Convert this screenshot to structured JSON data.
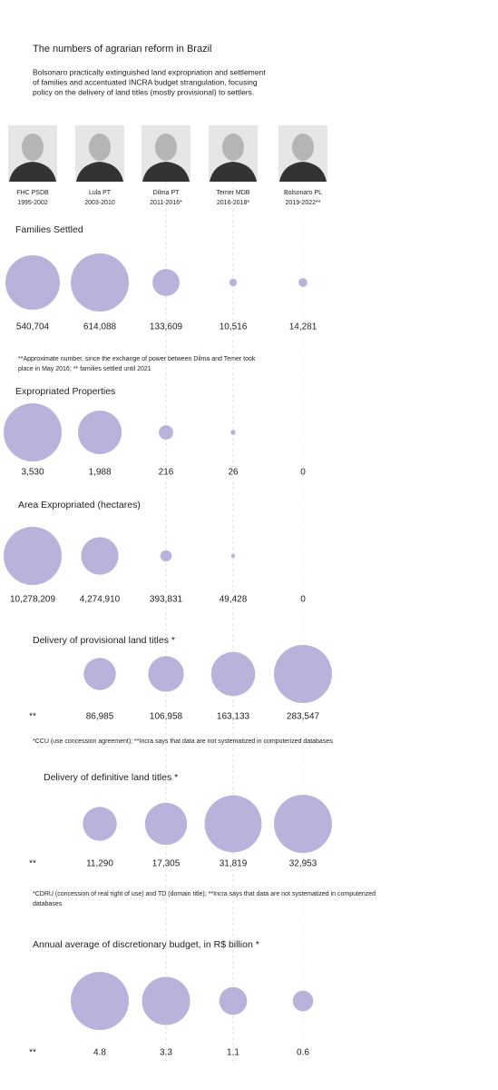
{
  "title": "The numbers of agrarian reform in Brazil",
  "subtitle": [
    "Bolsonaro practically extinguished land expropriation and settlement",
    "of families and accentuated INCRA budget strangulation, focusing",
    "policy on the delivery of land titles (mostly provisional) to settlers."
  ],
  "presidents": [
    {
      "name": "FHC PSDB",
      "years": "1995-2002"
    },
    {
      "name": "Lula  PT",
      "years": "2003-2010"
    },
    {
      "name": "Dilma PT",
      "years": "2011-2016*"
    },
    {
      "name": "Temer MDB",
      "years": "2016-2018*"
    },
    {
      "name": "Bolsonaro PL",
      "years": "2019-2022**"
    }
  ],
  "chart_data": [
    {
      "type": "bubble",
      "title": "Families Settled",
      "color": "#b9b3dc",
      "values": [
        540704,
        614088,
        133609,
        10516,
        14281
      ],
      "value_labels": [
        "540,704",
        "614,088",
        "133,609",
        "10,516",
        "14,281"
      ],
      "note": [
        "**Approximate number, since the exchange of power between Dilma and Temer took",
        "place in May 2016; ** families settled until 2021"
      ]
    },
    {
      "type": "bubble",
      "title": "Expropriated  Properties",
      "color": "#b9b3dc",
      "values": [
        3530,
        1988,
        216,
        26,
        0
      ],
      "value_labels": [
        "3,530",
        "1,988",
        "216",
        "26",
        "0"
      ]
    },
    {
      "type": "bubble",
      "title": "Area Expropriated (hectares)",
      "color": "#b9b3dc",
      "values": [
        10278209,
        4274910,
        393831,
        49428,
        0
      ],
      "value_labels": [
        "10,278,209",
        "4,274,910",
        "393,831",
        "49,428",
        "0"
      ]
    },
    {
      "type": "bubble",
      "title": "Delivery of provisional land titles *",
      "color": "#b9b3dc",
      "values": [
        null,
        86985,
        106958,
        163133,
        283547
      ],
      "value_labels": [
        "**",
        "86,985",
        "106,958",
        "163,133",
        "283,547"
      ],
      "note": [
        "*CCU (use concession agreement); **Incra says that data are not systematized in computerized databases"
      ]
    },
    {
      "type": "bubble",
      "title": "Delivery of definitive land titles *",
      "color": "#b9b3dc",
      "values": [
        null,
        11290,
        17305,
        31819,
        32953
      ],
      "value_labels": [
        "**",
        "11,290",
        "17,305",
        "31,819",
        "32,953"
      ],
      "note": [
        "*CDRU (concession of real right of use) and TD (domain title); **Incra says that data are not systematized in computerized",
        "databases"
      ]
    },
    {
      "type": "bubble",
      "title": "Annual average of discretionary budget, in R$ billion *",
      "color": "#b9b3dc",
      "values": [
        null,
        4.8,
        3.3,
        1.1,
        0.6
      ],
      "value_labels": [
        "**",
        "4.8",
        "3.3",
        "1.1",
        "0.6"
      ]
    }
  ]
}
